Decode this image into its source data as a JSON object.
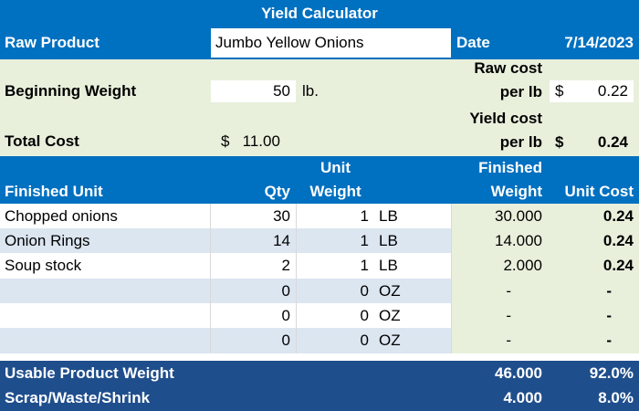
{
  "title": "Yield Calculator",
  "raw_product_label": "Raw Product",
  "raw_product_value": "Jumbo Yellow Onions",
  "date_label": "Date",
  "date_value": "7/14/2023",
  "raw_cost_label_1": "Raw cost",
  "raw_cost_label_2": "per lb",
  "raw_cost_currency": "$",
  "raw_cost_value": "0.22",
  "beginning_weight_label": "Beginning Weight",
  "beginning_weight_value": "50",
  "beginning_weight_unit": "lb.",
  "yield_cost_label_1": "Yield cost",
  "yield_cost_label_2": "per lb",
  "yield_cost_currency": "$",
  "yield_cost_value": "0.24",
  "total_cost_label": "Total Cost",
  "total_cost_value": "$   11.00",
  "headers": {
    "finished_unit": "Finished Unit",
    "qty": "Qty",
    "unit_weight_1": "Unit",
    "unit_weight_2": "Weight",
    "finished_weight_1": "Finished",
    "finished_weight_2": "Weight",
    "unit_cost": "Unit Cost"
  },
  "rows": [
    {
      "name": "Chopped onions",
      "qty": "30",
      "unit_weight": "1",
      "unit": "LB",
      "finished_weight": "30.000",
      "unit_cost": "0.24"
    },
    {
      "name": "Onion Rings",
      "qty": "14",
      "unit_weight": "1",
      "unit": "LB",
      "finished_weight": "14.000",
      "unit_cost": "0.24"
    },
    {
      "name": "Soup stock",
      "qty": "2",
      "unit_weight": "1",
      "unit": "LB",
      "finished_weight": "2.000",
      "unit_cost": "0.24"
    },
    {
      "name": "",
      "qty": "0",
      "unit_weight": "0",
      "unit": "OZ",
      "finished_weight": "-",
      "unit_cost": "-"
    },
    {
      "name": "",
      "qty": "0",
      "unit_weight": "0",
      "unit": "OZ",
      "finished_weight": "-",
      "unit_cost": "-"
    },
    {
      "name": "",
      "qty": "0",
      "unit_weight": "0",
      "unit": "OZ",
      "finished_weight": "-",
      "unit_cost": "-"
    }
  ],
  "usable_label": "Usable Product Weight",
  "usable_weight": "46.000",
  "usable_pct": "92.0%",
  "scrap_label": "Scrap/Waste/Shrink",
  "scrap_weight": "4.000",
  "scrap_pct": "8.0%"
}
